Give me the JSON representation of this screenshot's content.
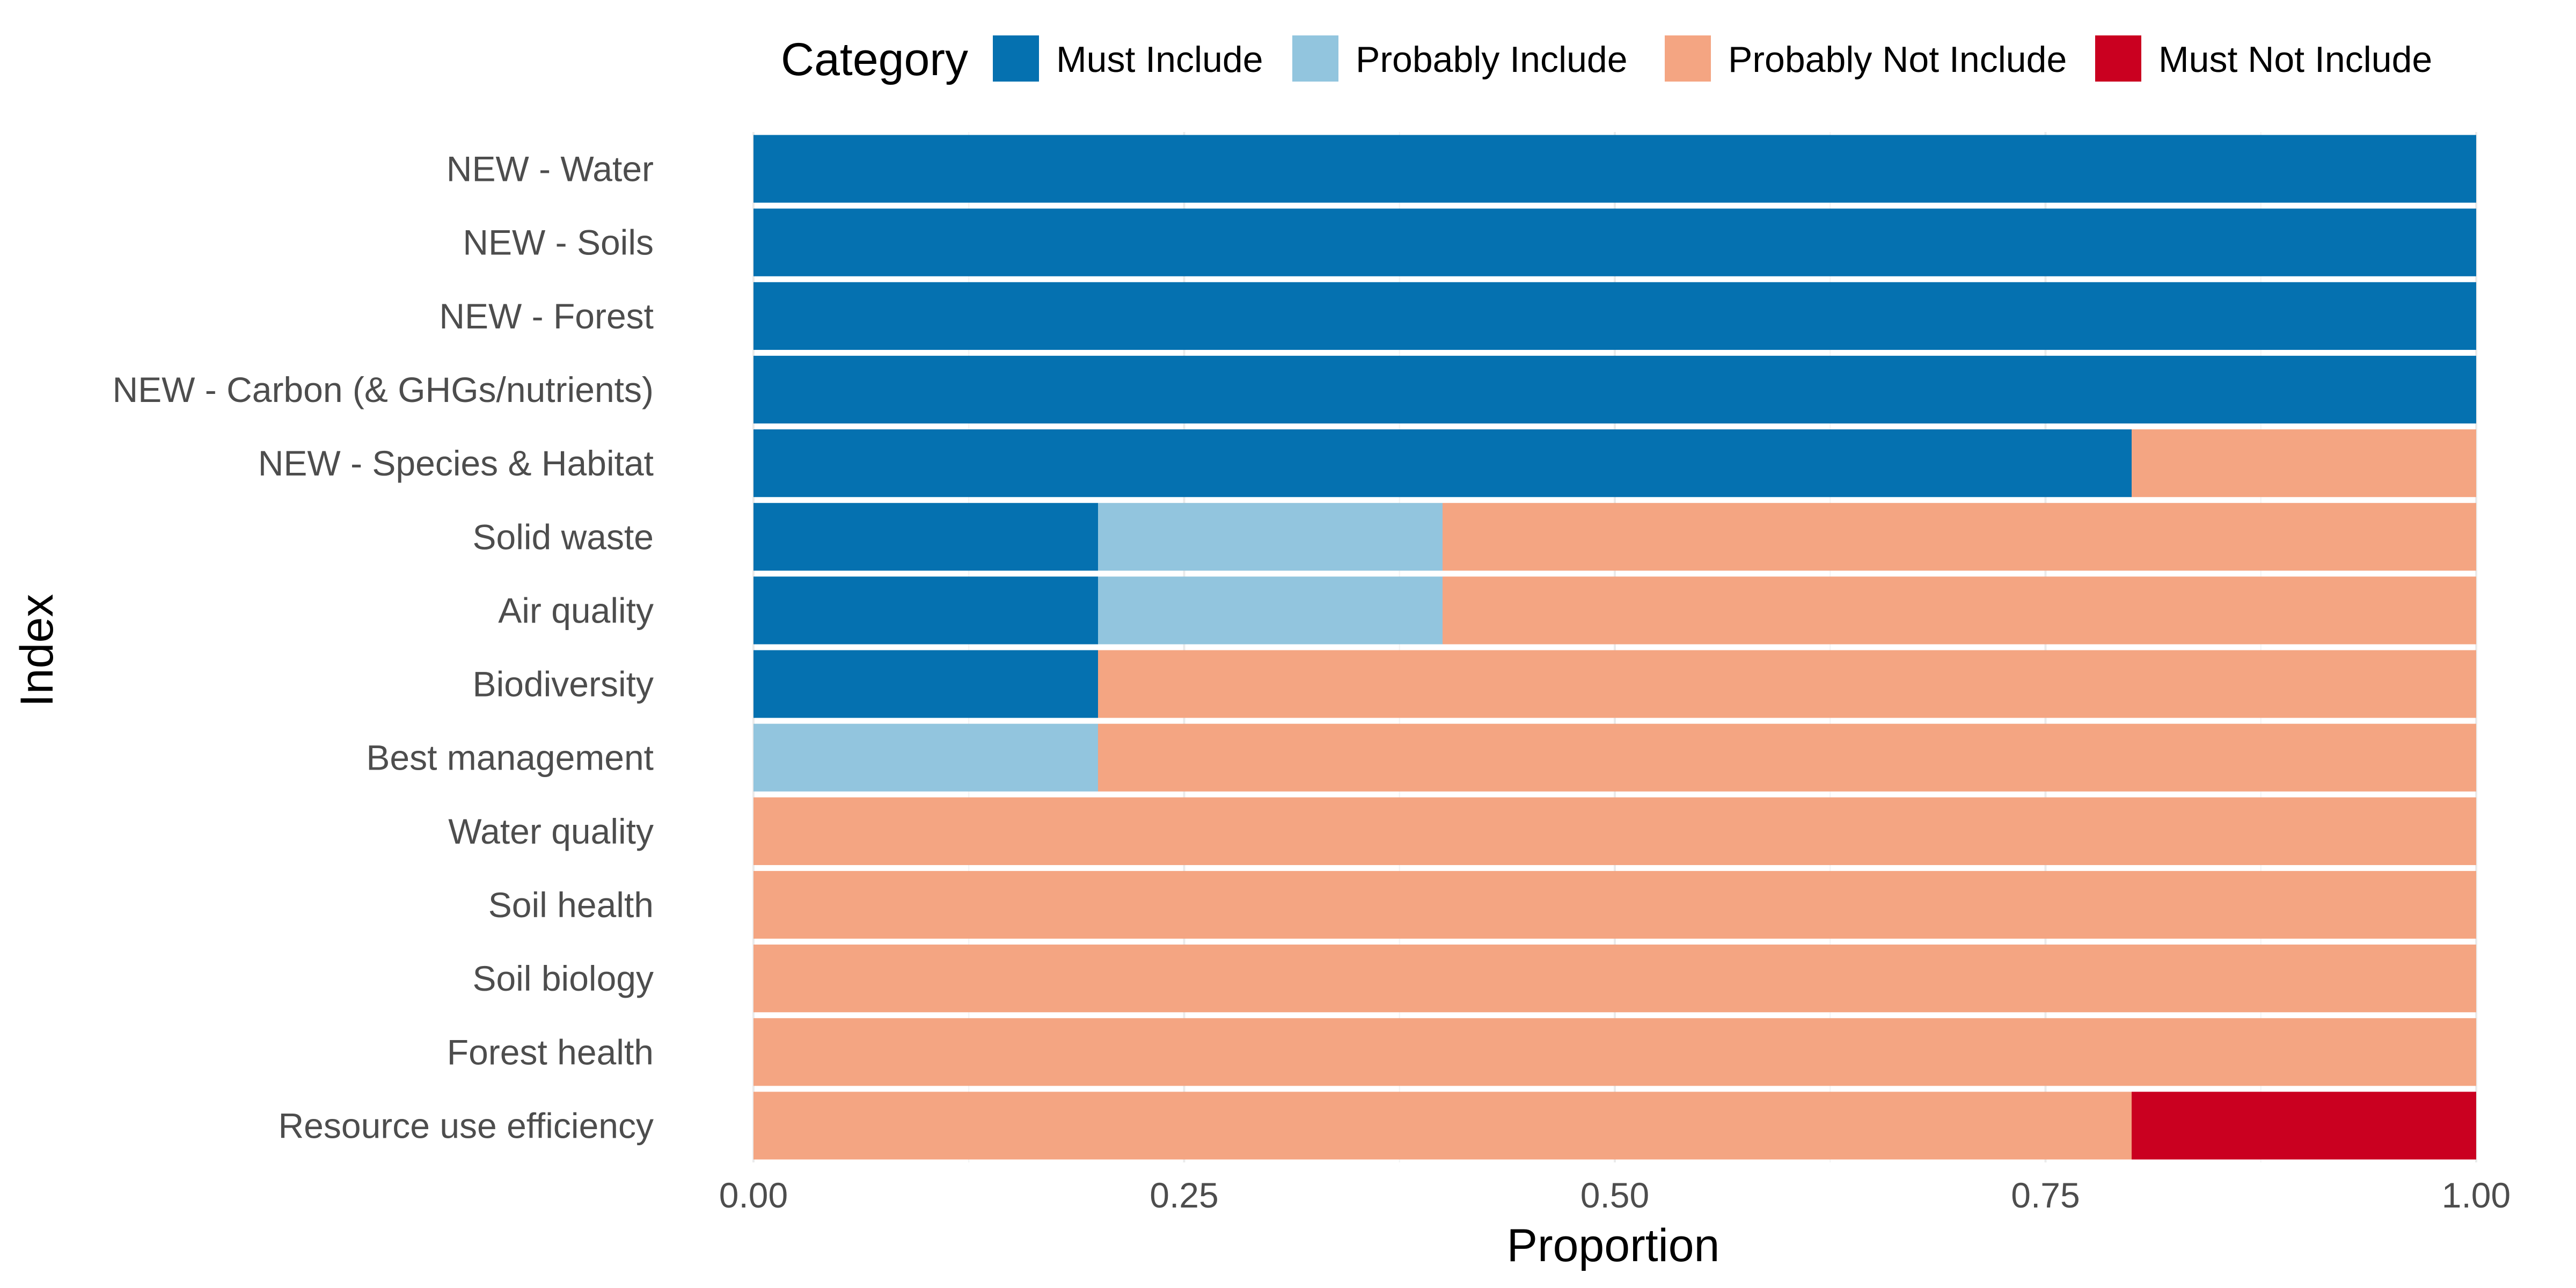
{
  "chart_data": {
    "type": "bar",
    "orientation": "horizontal",
    "stacked": true,
    "title": "",
    "xlabel": "Proportion",
    "ylabel": "Index",
    "xlim": [
      0,
      1
    ],
    "x_ticks": [
      "0.00",
      "0.25",
      "0.50",
      "0.75",
      "1.00"
    ],
    "x_tick_values": [
      0,
      0.25,
      0.5,
      0.75,
      1.0
    ],
    "grid": true,
    "legend": {
      "title": "Category",
      "position": "top"
    },
    "categories": [
      "NEW - Water",
      "NEW - Soils",
      "NEW - Forest",
      "NEW - Carbon (& GHGs/nutrients)",
      "NEW - Species & Habitat",
      "Solid waste",
      "Air quality",
      "Biodiversity",
      "Best management",
      "Water quality",
      "Soil health",
      "Soil biology",
      "Forest health",
      "Resource use efficiency"
    ],
    "series": [
      {
        "name": "Must Include",
        "color": "#0571b0",
        "values": [
          1.0,
          1.0,
          1.0,
          1.0,
          0.8,
          0.2,
          0.2,
          0.2,
          0.0,
          0.0,
          0.0,
          0.0,
          0.0,
          0.0
        ]
      },
      {
        "name": "Probably Include",
        "color": "#92c5de",
        "values": [
          0.0,
          0.0,
          0.0,
          0.0,
          0.0,
          0.2,
          0.2,
          0.0,
          0.2,
          0.0,
          0.0,
          0.0,
          0.0,
          0.0
        ]
      },
      {
        "name": "Probably Not Include",
        "color": "#f4a582",
        "values": [
          0.0,
          0.0,
          0.0,
          0.0,
          0.2,
          0.6,
          0.6,
          0.8,
          0.8,
          1.0,
          1.0,
          1.0,
          1.0,
          0.8
        ]
      },
      {
        "name": "Must Not Include",
        "color": "#ca0020",
        "values": [
          0.0,
          0.0,
          0.0,
          0.0,
          0.0,
          0.0,
          0.0,
          0.0,
          0.0,
          0.0,
          0.0,
          0.0,
          0.0,
          0.2
        ]
      }
    ]
  }
}
